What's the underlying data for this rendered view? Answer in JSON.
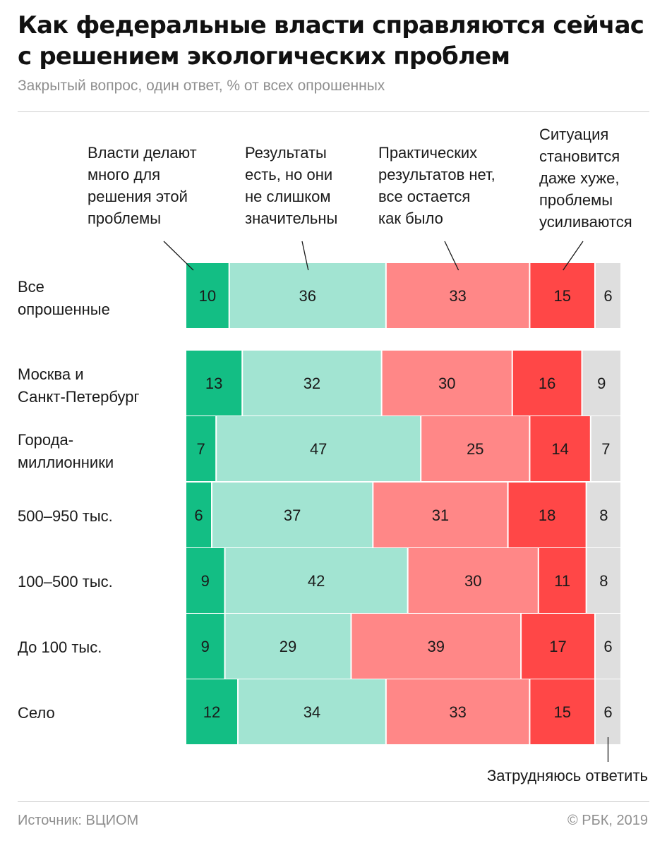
{
  "header": {
    "title": "Как федеральные власти справляются сейчас с решением экологических проблем",
    "subtitle": "Закрытый вопрос, один ответ, % от всех опрошенных"
  },
  "footer": {
    "source": "Источник: ВЦИОМ",
    "copyright": "© РБК, 2019"
  },
  "chart_data": {
    "type": "bar",
    "stacked": true,
    "orientation": "horizontal",
    "unit": "%",
    "categories": [
      [
        "Все",
        "опрошенные"
      ],
      [
        "Москва и",
        "Санкт-Петербург"
      ],
      [
        "Города-",
        "миллионники"
      ],
      [
        "500–950 тыс."
      ],
      [
        "100–500 тыс."
      ],
      [
        "До 100 тыс."
      ],
      [
        "Село"
      ]
    ],
    "series": [
      {
        "name": [
          "Власти делают",
          "много для",
          "решения этой",
          "проблемы"
        ],
        "color": "#13be84",
        "values": [
          10,
          13,
          7,
          6,
          9,
          9,
          12
        ]
      },
      {
        "name": [
          "Результаты",
          "есть, но они",
          "не слишком",
          "значительны"
        ],
        "color": "#a2e4d2",
        "values": [
          36,
          32,
          47,
          37,
          42,
          29,
          34
        ]
      },
      {
        "name": [
          "Практических",
          "результатов нет,",
          "все остается",
          "как было"
        ],
        "color": "#ff8787",
        "values": [
          33,
          30,
          25,
          31,
          30,
          39,
          33
        ]
      },
      {
        "name": [
          "Ситуация",
          "становится",
          "даже хуже,",
          "проблемы",
          "усиливаются"
        ],
        "color": "#ff4747",
        "values": [
          15,
          16,
          14,
          18,
          11,
          17,
          15
        ]
      },
      {
        "name": [
          "Затрудняюсь ответить"
        ],
        "color": "#dedede",
        "values": [
          6,
          9,
          7,
          8,
          8,
          6,
          6
        ]
      }
    ]
  }
}
